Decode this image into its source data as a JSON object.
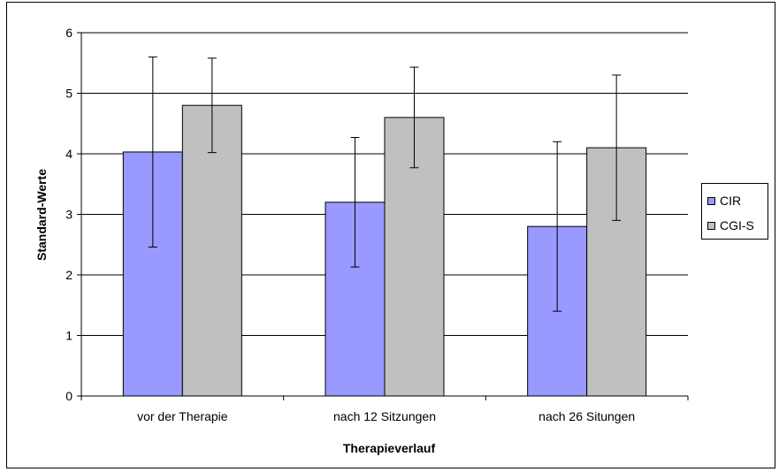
{
  "chart_data": {
    "type": "bar",
    "categories": [
      "vor der Therapie",
      "nach 12 Sitzungen",
      "nach 26 Situngen"
    ],
    "series": [
      {
        "name": "CIR",
        "color": "#9999ff",
        "values": [
          4.03,
          3.2,
          2.8
        ],
        "error_low": [
          2.46,
          2.13,
          1.4
        ],
        "error_high": [
          5.6,
          4.27,
          4.2
        ]
      },
      {
        "name": "CGI-S",
        "color": "#c0c0c0",
        "values": [
          4.8,
          4.6,
          4.1
        ],
        "error_low": [
          4.02,
          3.77,
          2.9
        ],
        "error_high": [
          5.58,
          5.43,
          5.3
        ]
      }
    ],
    "xlabel": "Therapieverlauf",
    "ylabel": "Standard-Werte",
    "ylim": [
      0,
      6
    ],
    "yticks": [
      "0",
      "1",
      "2",
      "3",
      "4",
      "5",
      "6"
    ],
    "grid": true,
    "legend_position": "right"
  }
}
